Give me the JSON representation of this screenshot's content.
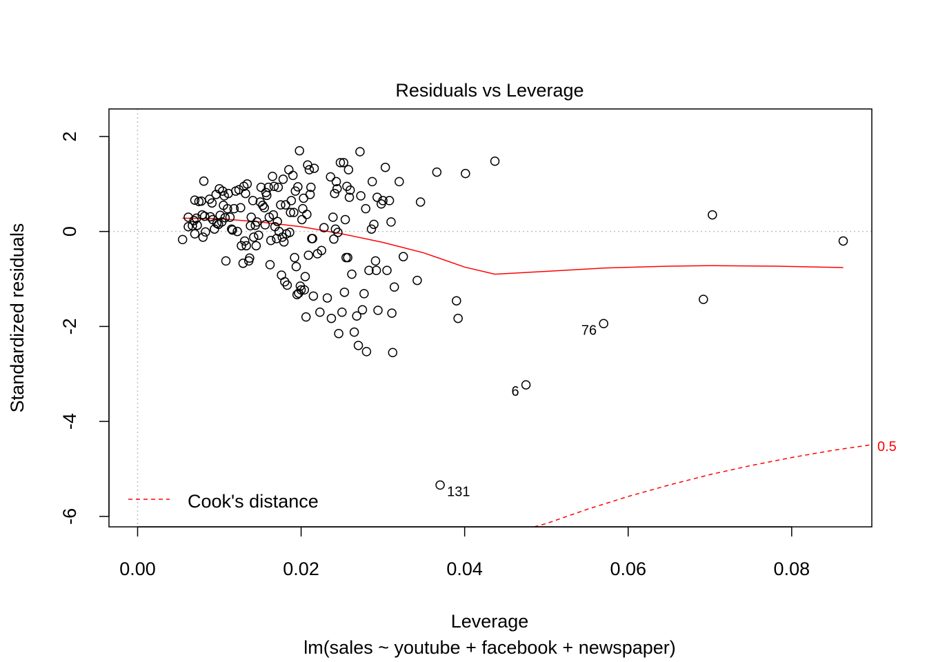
{
  "chart_data": {
    "type": "scatter",
    "title": "Residuals vs Leverage",
    "xlabel": "Leverage",
    "subtitle": "lm(sales ~ youtube + facebook + newspaper)",
    "ylabel": "Standardized residuals",
    "xlim": [
      -0.0035,
      0.0898
    ],
    "ylim": [
      -6.22,
      2.58
    ],
    "x_ticks": [
      0.0,
      0.02,
      0.04,
      0.06,
      0.08
    ],
    "x_tick_labels": [
      "0.00",
      "0.02",
      "0.04",
      "0.06",
      "0.08"
    ],
    "y_ticks": [
      2,
      0,
      -2,
      -4,
      -6
    ],
    "y_tick_labels": [
      "2",
      "0",
      "-2",
      "-4",
      "-6"
    ],
    "legend": {
      "label": "Cook's distance",
      "position": "bottom-left"
    },
    "cook_label": "0.5",
    "colors": {
      "points": "#000000",
      "smooth": "#ff0000",
      "cook": "#ff0000",
      "reference": "#bebebe"
    },
    "labeled_points": [
      {
        "label": "76",
        "x": 0.057,
        "y": -1.94
      },
      {
        "label": "6",
        "x": 0.0475,
        "y": -3.23
      },
      {
        "label": "131",
        "x": 0.037,
        "y": -5.34
      }
    ],
    "points": [
      [
        0.0055,
        -0.17
      ],
      [
        0.0062,
        0.3
      ],
      [
        0.0062,
        0.1
      ],
      [
        0.0067,
        0.12
      ],
      [
        0.0069,
        0.23
      ],
      [
        0.007,
        0.66
      ],
      [
        0.007,
        -0.05
      ],
      [
        0.0072,
        0.28
      ],
      [
        0.0073,
        0.13
      ],
      [
        0.0075,
        0.63
      ],
      [
        0.0078,
        0.64
      ],
      [
        0.0079,
        0.35
      ],
      [
        0.008,
        -0.12
      ],
      [
        0.0081,
        1.06
      ],
      [
        0.0082,
        0.32
      ],
      [
        0.0083,
        -0.01
      ],
      [
        0.0088,
        0.68
      ],
      [
        0.0089,
        0.31
      ],
      [
        0.0091,
        0.6
      ],
      [
        0.0092,
        0.25
      ],
      [
        0.0094,
        0.05
      ],
      [
        0.0096,
        0.78
      ],
      [
        0.0097,
        0.17
      ],
      [
        0.0099,
        0.15
      ],
      [
        0.01,
        0.9
      ],
      [
        0.0101,
        0.34
      ],
      [
        0.0103,
        0.2
      ],
      [
        0.0104,
        0.85
      ],
      [
        0.0105,
        0.55
      ],
      [
        0.0106,
        0.75
      ],
      [
        0.0107,
        0.29
      ],
      [
        0.0108,
        -0.62
      ],
      [
        0.011,
        0.48
      ],
      [
        0.0111,
        0.8
      ],
      [
        0.0113,
        0.3
      ],
      [
        0.0115,
        0.05
      ],
      [
        0.0116,
        0.03
      ],
      [
        0.0118,
        0.48
      ],
      [
        0.012,
        0.85
      ],
      [
        0.0122,
        0.0
      ],
      [
        0.0124,
        0.88
      ],
      [
        0.0126,
        0.5
      ],
      [
        0.0127,
        -0.3
      ],
      [
        0.0129,
        -0.67
      ],
      [
        0.013,
        0.95
      ],
      [
        0.0131,
        -0.2
      ],
      [
        0.0132,
        0.8
      ],
      [
        0.0133,
        -0.3
      ],
      [
        0.0134,
        1.0
      ],
      [
        0.0136,
        -0.62
      ],
      [
        0.0137,
        -0.56
      ],
      [
        0.0138,
        0.12
      ],
      [
        0.0139,
        0.3
      ],
      [
        0.0141,
        0.65
      ],
      [
        0.0142,
        -0.12
      ],
      [
        0.0144,
        0.13
      ],
      [
        0.0145,
        -0.3
      ],
      [
        0.0146,
        0.2
      ],
      [
        0.0148,
        -0.08
      ],
      [
        0.015,
        0.62
      ],
      [
        0.0151,
        0.93
      ],
      [
        0.0153,
        0.55
      ],
      [
        0.0155,
        0.5
      ],
      [
        0.0156,
        0.14
      ],
      [
        0.0157,
        0.82
      ],
      [
        0.0158,
        0.76
      ],
      [
        0.016,
        0.93
      ],
      [
        0.0161,
        0.3
      ],
      [
        0.0162,
        -0.7
      ],
      [
        0.0163,
        -0.19
      ],
      [
        0.0165,
        1.16
      ],
      [
        0.0166,
        0.35
      ],
      [
        0.0167,
        0.95
      ],
      [
        0.0168,
        0.1
      ],
      [
        0.017,
        -0.15
      ],
      [
        0.0171,
        0.21
      ],
      [
        0.0172,
        0.93
      ],
      [
        0.0173,
        0.0
      ],
      [
        0.0175,
        0.56
      ],
      [
        0.0176,
        -0.92
      ],
      [
        0.0177,
        -0.12
      ],
      [
        0.0178,
        1.1
      ],
      [
        0.0179,
        -0.22
      ],
      [
        0.018,
        -1.06
      ],
      [
        0.0181,
        0.56
      ],
      [
        0.0182,
        -0.05
      ],
      [
        0.0183,
        -1.13
      ],
      [
        0.0185,
        1.3
      ],
      [
        0.0186,
        -0.02
      ],
      [
        0.0187,
        0.4
      ],
      [
        0.0188,
        0.65
      ],
      [
        0.019,
        1.18
      ],
      [
        0.0191,
        0.4
      ],
      [
        0.0192,
        -0.55
      ],
      [
        0.0193,
        0.85
      ],
      [
        0.0194,
        -0.74
      ],
      [
        0.0195,
        -1.33
      ],
      [
        0.0196,
        0.94
      ],
      [
        0.0197,
        -1.3
      ],
      [
        0.0198,
        1.7
      ],
      [
        0.0199,
        -1.15
      ],
      [
        0.02,
        -1.23
      ],
      [
        0.0201,
        0.25
      ],
      [
        0.0202,
        0.48
      ],
      [
        0.0203,
        0.7
      ],
      [
        0.0204,
        -1.23
      ],
      [
        0.0205,
        -0.95
      ],
      [
        0.0206,
        -1.8
      ],
      [
        0.0207,
        0.36
      ],
      [
        0.0208,
        1.4
      ],
      [
        0.0209,
        -0.5
      ],
      [
        0.021,
        1.3
      ],
      [
        0.0211,
        0.78
      ],
      [
        0.0212,
        0.93
      ],
      [
        0.0213,
        -0.15
      ],
      [
        0.0214,
        -0.15
      ],
      [
        0.0215,
        -1.36
      ],
      [
        0.0216,
        1.33
      ],
      [
        0.022,
        -0.47
      ],
      [
        0.0223,
        -1.7
      ],
      [
        0.0225,
        -0.4
      ],
      [
        0.0228,
        0.08
      ],
      [
        0.0232,
        -1.4
      ],
      [
        0.0236,
        1.15
      ],
      [
        0.0237,
        -1.83
      ],
      [
        0.0239,
        0.3
      ],
      [
        0.024,
        -0.16
      ],
      [
        0.0241,
        0.8
      ],
      [
        0.0242,
        0.05
      ],
      [
        0.0243,
        1.05
      ],
      [
        0.0244,
        0.9
      ],
      [
        0.0245,
        -0.02
      ],
      [
        0.0246,
        -2.15
      ],
      [
        0.0248,
        1.45
      ],
      [
        0.025,
        -1.7
      ],
      [
        0.0252,
        1.45
      ],
      [
        0.0253,
        -1.28
      ],
      [
        0.0254,
        0.25
      ],
      [
        0.0255,
        -0.55
      ],
      [
        0.0256,
        0.95
      ],
      [
        0.0257,
        -0.55
      ],
      [
        0.0258,
        1.3
      ],
      [
        0.0259,
        0.72
      ],
      [
        0.026,
        0.87
      ],
      [
        0.0262,
        -0.9
      ],
      [
        0.0265,
        -2.12
      ],
      [
        0.0268,
        -1.78
      ],
      [
        0.027,
        -2.4
      ],
      [
        0.0272,
        1.68
      ],
      [
        0.0273,
        0.75
      ],
      [
        0.0275,
        -1.65
      ],
      [
        0.0277,
        -1.31
      ],
      [
        0.0279,
        0.48
      ],
      [
        0.028,
        -2.53
      ],
      [
        0.0283,
        -0.82
      ],
      [
        0.0286,
        0.05
      ],
      [
        0.0287,
        1.05
      ],
      [
        0.0289,
        0.15
      ],
      [
        0.0291,
        -0.62
      ],
      [
        0.0292,
        -0.82
      ],
      [
        0.0293,
        0.72
      ],
      [
        0.0294,
        -1.66
      ],
      [
        0.0298,
        0.58
      ],
      [
        0.03,
        0.65
      ],
      [
        0.0303,
        1.35
      ],
      [
        0.0305,
        -0.82
      ],
      [
        0.0308,
        0.65
      ],
      [
        0.031,
        0.2
      ],
      [
        0.0311,
        -1.72
      ],
      [
        0.0312,
        -2.55
      ],
      [
        0.0314,
        -1.17
      ],
      [
        0.032,
        1.05
      ],
      [
        0.0325,
        -0.53
      ],
      [
        0.0342,
        -1.03
      ],
      [
        0.0346,
        0.62
      ],
      [
        0.0366,
        1.25
      ],
      [
        0.039,
        -1.46
      ],
      [
        0.0392,
        -1.83
      ],
      [
        0.0401,
        1.22
      ],
      [
        0.0437,
        1.48
      ],
      [
        0.0475,
        -3.23
      ],
      [
        0.057,
        -1.94
      ],
      [
        0.0692,
        -1.43
      ],
      [
        0.0703,
        0.35
      ],
      [
        0.0863,
        -0.2
      ],
      [
        0.037,
        -5.34
      ]
    ],
    "smooth_line": [
      [
        0.0055,
        0.28
      ],
      [
        0.01,
        0.27
      ],
      [
        0.015,
        0.2
      ],
      [
        0.02,
        0.1
      ],
      [
        0.025,
        -0.05
      ],
      [
        0.03,
        -0.23
      ],
      [
        0.035,
        -0.45
      ],
      [
        0.04,
        -0.75
      ],
      [
        0.0437,
        -0.9
      ],
      [
        0.05,
        -0.84
      ],
      [
        0.057,
        -0.77
      ],
      [
        0.065,
        -0.73
      ],
      [
        0.0703,
        -0.72
      ],
      [
        0.078,
        -0.73
      ],
      [
        0.0863,
        -0.76
      ]
    ],
    "cook_line": [
      [
        0.0485,
        -6.22
      ],
      [
        0.05,
        -6.15
      ],
      [
        0.055,
        -5.85
      ],
      [
        0.06,
        -5.58
      ],
      [
        0.065,
        -5.34
      ],
      [
        0.07,
        -5.12
      ],
      [
        0.075,
        -4.93
      ],
      [
        0.08,
        -4.76
      ],
      [
        0.085,
        -4.61
      ],
      [
        0.0898,
        -4.49
      ]
    ]
  }
}
